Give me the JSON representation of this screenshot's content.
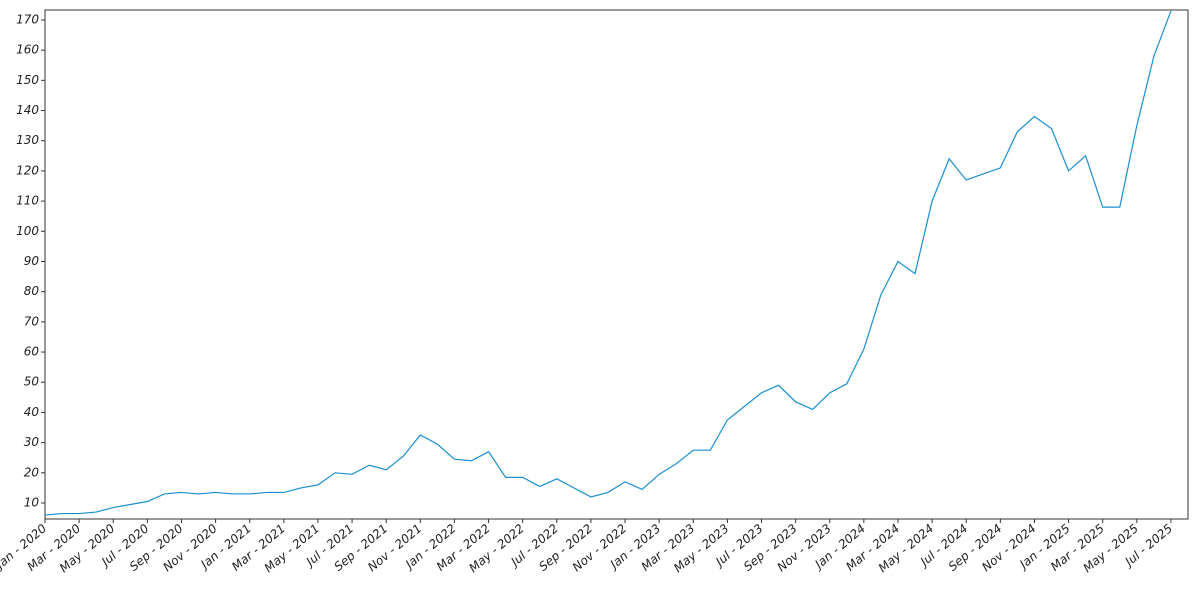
{
  "chart_data": {
    "type": "line",
    "x": [
      "2020-01",
      "2020-02",
      "2020-03",
      "2020-04",
      "2020-05",
      "2020-06",
      "2020-07",
      "2020-08",
      "2020-09",
      "2020-10",
      "2020-11",
      "2020-12",
      "2021-01",
      "2021-02",
      "2021-03",
      "2021-04",
      "2021-05",
      "2021-06",
      "2021-07",
      "2021-08",
      "2021-09",
      "2021-10",
      "2021-11",
      "2021-12",
      "2022-01",
      "2022-02",
      "2022-03",
      "2022-04",
      "2022-05",
      "2022-06",
      "2022-07",
      "2022-08",
      "2022-09",
      "2022-10",
      "2022-11",
      "2022-12",
      "2023-01",
      "2023-02",
      "2023-03",
      "2023-04",
      "2023-05",
      "2023-06",
      "2023-07",
      "2023-08",
      "2023-09",
      "2023-10",
      "2023-11",
      "2023-12",
      "2024-01",
      "2024-02",
      "2024-03",
      "2024-04",
      "2024-05",
      "2024-06",
      "2024-07",
      "2024-08",
      "2024-09",
      "2024-10",
      "2024-11",
      "2024-12",
      "2025-01",
      "2025-02",
      "2025-03",
      "2025-04",
      "2025-05",
      "2025-06",
      "2025-07"
    ],
    "series": [
      {
        "color": "#1a8fd0",
        "values": [
          6,
          6.5,
          6.5,
          7,
          8.5,
          9.5,
          10.5,
          13,
          13.5,
          13,
          13.5,
          13,
          13,
          13.5,
          13.5,
          15,
          16,
          20,
          19.5,
          22.5,
          21,
          25.5,
          32.5,
          29.5,
          24.5,
          24,
          27,
          18.5,
          18.5,
          15.5,
          18,
          15,
          12,
          13.5,
          17,
          14.5,
          19.5,
          23,
          27.5,
          27.5,
          37.5,
          42,
          46.5,
          49,
          43.5,
          41,
          46.5,
          49.5,
          61,
          79,
          90,
          86,
          110,
          124,
          117,
          119,
          121,
          133,
          138,
          134,
          120,
          125,
          108,
          108,
          135,
          158,
          173
        ]
      }
    ],
    "xlim": [
      "2020-01",
      "2025-08"
    ],
    "xticks": [
      {
        "value": "2020-01",
        "label": "Jan - 2020"
      },
      {
        "value": "2020-03",
        "label": "Mar - 2020"
      },
      {
        "value": "2020-05",
        "label": "May - 2020"
      },
      {
        "value": "2020-07",
        "label": "Jul - 2020"
      },
      {
        "value": "2020-09",
        "label": "Sep - 2020"
      },
      {
        "value": "2020-11",
        "label": "Nov - 2020"
      },
      {
        "value": "2021-01",
        "label": "Jan - 2021"
      },
      {
        "value": "2021-03",
        "label": "Mar - 2021"
      },
      {
        "value": "2021-05",
        "label": "May - 2021"
      },
      {
        "value": "2021-07",
        "label": "Jul - 2021"
      },
      {
        "value": "2021-09",
        "label": "Sep - 2021"
      },
      {
        "value": "2021-11",
        "label": "Nov - 2021"
      },
      {
        "value": "2022-01",
        "label": "Jan - 2022"
      },
      {
        "value": "2022-03",
        "label": "Mar - 2022"
      },
      {
        "value": "2022-05",
        "label": "May - 2022"
      },
      {
        "value": "2022-07",
        "label": "Jul - 2022"
      },
      {
        "value": "2022-09",
        "label": "Sep - 2022"
      },
      {
        "value": "2022-11",
        "label": "Nov - 2022"
      },
      {
        "value": "2023-01",
        "label": "Jan - 2023"
      },
      {
        "value": "2023-03",
        "label": "Mar - 2023"
      },
      {
        "value": "2023-05",
        "label": "May - 2023"
      },
      {
        "value": "2023-07",
        "label": "Jul - 2023"
      },
      {
        "value": "2023-09",
        "label": "Sep - 2023"
      },
      {
        "value": "2023-11",
        "label": "Nov - 2023"
      },
      {
        "value": "2024-01",
        "label": "Jan - 2024"
      },
      {
        "value": "2024-03",
        "label": "Mar - 2024"
      },
      {
        "value": "2024-05",
        "label": "May - 2024"
      },
      {
        "value": "2024-07",
        "label": "Jul - 2024"
      },
      {
        "value": "2024-09",
        "label": "Sep - 2024"
      },
      {
        "value": "2024-11",
        "label": "Nov - 2024"
      },
      {
        "value": "2025-01",
        "label": "Jan - 2025"
      },
      {
        "value": "2025-03",
        "label": "Mar - 2025"
      },
      {
        "value": "2025-05",
        "label": "May - 2025"
      },
      {
        "value": "2025-07",
        "label": "Jul - 2025"
      }
    ],
    "ylim": [
      4.7,
      173.3
    ],
    "yticks": [
      10,
      20,
      30,
      40,
      50,
      60,
      70,
      80,
      90,
      100,
      110,
      120,
      130,
      140,
      150,
      160,
      170
    ],
    "grid": false
  }
}
